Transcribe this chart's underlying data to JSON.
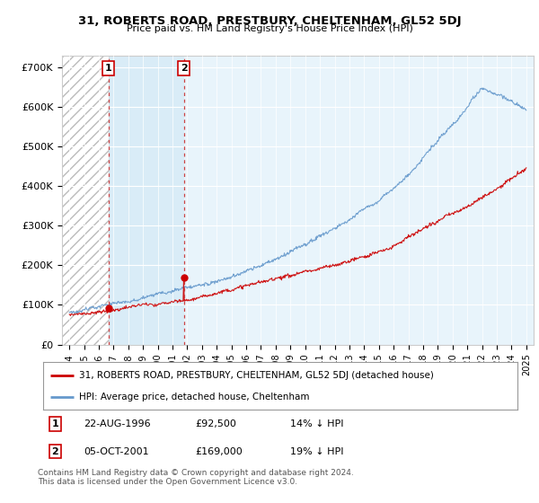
{
  "title": "31, ROBERTS ROAD, PRESTBURY, CHELTENHAM, GL52 5DJ",
  "subtitle": "Price paid vs. HM Land Registry's House Price Index (HPI)",
  "red_label": "31, ROBERTS ROAD, PRESTBURY, CHELTENHAM, GL52 5DJ (detached house)",
  "blue_label": "HPI: Average price, detached house, Cheltenham",
  "legend_entries": [
    {
      "num": "1",
      "date": "22-AUG-1996",
      "price": "£92,500",
      "hpi": "14% ↓ HPI"
    },
    {
      "num": "2",
      "date": "05-OCT-2001",
      "price": "£169,000",
      "hpi": "19% ↓ HPI"
    }
  ],
  "footnote": "Contains HM Land Registry data © Crown copyright and database right 2024.\nThis data is licensed under the Open Government Licence v3.0.",
  "marker1_x": 1996.64,
  "marker1_y": 92500,
  "marker2_x": 2001.76,
  "marker2_y": 169000,
  "hatch_end_x": 1996.64,
  "shade_end_x": 2001.76,
  "ylim": [
    0,
    730000
  ],
  "xlim_left": 1993.5,
  "xlim_right": 2025.5,
  "bg_color": "#e8f4fb",
  "shade_color": "#d0e8f5",
  "hatch_color": "#cccccc",
  "red_color": "#cc0000",
  "blue_color": "#6699cc"
}
